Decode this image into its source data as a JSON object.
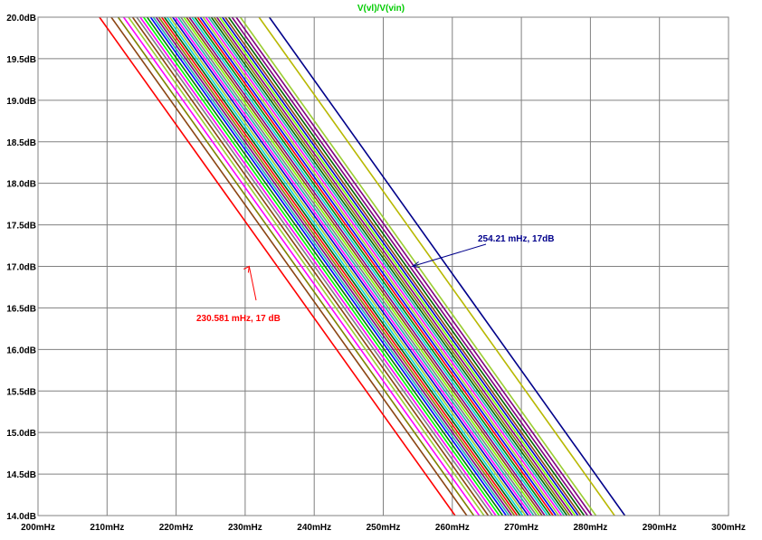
{
  "chart_data": {
    "type": "line",
    "title": "V(vl)/V(vin)",
    "title_color": "#00cc00",
    "xlim": [
      0.2,
      0.3
    ],
    "ylim": [
      14.0,
      20.0
    ],
    "x_ticks": [
      {
        "value": 0.2,
        "label": "200mHz"
      },
      {
        "value": 0.21,
        "label": "210mHz"
      },
      {
        "value": 0.22,
        "label": "220mHz"
      },
      {
        "value": 0.23,
        "label": "230mHz"
      },
      {
        "value": 0.24,
        "label": "240mHz"
      },
      {
        "value": 0.25,
        "label": "250mHz"
      },
      {
        "value": 0.26,
        "label": "260mHz"
      },
      {
        "value": 0.27,
        "label": "270mHz"
      },
      {
        "value": 0.28,
        "label": "280mHz"
      },
      {
        "value": 0.29,
        "label": "290mHz"
      },
      {
        "value": 0.3,
        "label": "300mHz"
      }
    ],
    "y_ticks": [
      {
        "value": 20.0,
        "label": "20.0dB"
      },
      {
        "value": 19.5,
        "label": "19.5dB"
      },
      {
        "value": 19.0,
        "label": "19.0dB"
      },
      {
        "value": 18.5,
        "label": "18.5dB"
      },
      {
        "value": 18.0,
        "label": "18.0dB"
      },
      {
        "value": 17.5,
        "label": "17.5dB"
      },
      {
        "value": 17.0,
        "label": "17.0dB"
      },
      {
        "value": 16.5,
        "label": "16.5dB"
      },
      {
        "value": 16.0,
        "label": "16.0dB"
      },
      {
        "value": 15.5,
        "label": "15.5dB"
      },
      {
        "value": 15.0,
        "label": "15.0dB"
      },
      {
        "value": 14.5,
        "label": "14.5dB"
      },
      {
        "value": 14.0,
        "label": "14.0dB"
      }
    ],
    "grid": true,
    "series": [
      {
        "color": "#ff0000",
        "x": [
          0.2089,
          0.2604
        ],
        "y": [
          20.0,
          14.0
        ]
      },
      {
        "color": "#8b4513",
        "x": [
          0.2106,
          0.2621
        ],
        "y": [
          20.0,
          14.0
        ]
      },
      {
        "color": "#808000",
        "x": [
          0.2116,
          0.2631
        ],
        "y": [
          20.0,
          14.0
        ]
      },
      {
        "color": "#ff00ff",
        "x": [
          0.2124,
          0.2639
        ],
        "y": [
          20.0,
          14.0
        ]
      },
      {
        "color": "#9acd32",
        "x": [
          0.2131,
          0.2646
        ],
        "y": [
          20.0,
          14.0
        ]
      },
      {
        "color": "#8b4513",
        "x": [
          0.2137,
          0.2652
        ],
        "y": [
          20.0,
          14.0
        ]
      },
      {
        "color": "#808080",
        "x": [
          0.2143,
          0.2658
        ],
        "y": [
          20.0,
          14.0
        ]
      },
      {
        "color": "#ff00ff",
        "x": [
          0.2148,
          0.2663
        ],
        "y": [
          20.0,
          14.0
        ]
      },
      {
        "color": "#00ff00",
        "x": [
          0.2153,
          0.2668
        ],
        "y": [
          20.0,
          14.0
        ]
      },
      {
        "color": "#008000",
        "x": [
          0.2158,
          0.2673
        ],
        "y": [
          20.0,
          14.0
        ]
      },
      {
        "color": "#0000ff",
        "x": [
          0.2163,
          0.2678
        ],
        "y": [
          20.0,
          14.0
        ]
      },
      {
        "color": "#20b2aa",
        "x": [
          0.2167,
          0.2682
        ],
        "y": [
          20.0,
          14.0
        ]
      },
      {
        "color": "#800080",
        "x": [
          0.2171,
          0.2686
        ],
        "y": [
          20.0,
          14.0
        ]
      },
      {
        "color": "#808000",
        "x": [
          0.2175,
          0.269
        ],
        "y": [
          20.0,
          14.0
        ]
      },
      {
        "color": "#ff0000",
        "x": [
          0.2179,
          0.2694
        ],
        "y": [
          20.0,
          14.0
        ]
      },
      {
        "color": "#006400",
        "x": [
          0.2183,
          0.2698
        ],
        "y": [
          20.0,
          14.0
        ]
      },
      {
        "color": "#00ced1",
        "x": [
          0.2187,
          0.2702
        ],
        "y": [
          20.0,
          14.0
        ]
      },
      {
        "color": "#9acd32",
        "x": [
          0.2191,
          0.2706
        ],
        "y": [
          20.0,
          14.0
        ]
      },
      {
        "color": "#0000cd",
        "x": [
          0.2195,
          0.271
        ],
        "y": [
          20.0,
          14.0
        ]
      },
      {
        "color": "#ff00ff",
        "x": [
          0.2199,
          0.2714
        ],
        "y": [
          20.0,
          14.0
        ]
      },
      {
        "color": "#20b2aa",
        "x": [
          0.2203,
          0.2718
        ],
        "y": [
          20.0,
          14.0
        ]
      },
      {
        "color": "#808080",
        "x": [
          0.2207,
          0.2722
        ],
        "y": [
          20.0,
          14.0
        ]
      },
      {
        "color": "#7cfc00",
        "x": [
          0.2211,
          0.2726
        ],
        "y": [
          20.0,
          14.0
        ]
      },
      {
        "color": "#8b4513",
        "x": [
          0.2215,
          0.273
        ],
        "y": [
          20.0,
          14.0
        ]
      },
      {
        "color": "#800080",
        "x": [
          0.2219,
          0.2734
        ],
        "y": [
          20.0,
          14.0
        ]
      },
      {
        "color": "#00ced1",
        "x": [
          0.2223,
          0.2738
        ],
        "y": [
          20.0,
          14.0
        ]
      },
      {
        "color": "#008000",
        "x": [
          0.2227,
          0.2742
        ],
        "y": [
          20.0,
          14.0
        ]
      },
      {
        "color": "#ff0000",
        "x": [
          0.2231,
          0.2746
        ],
        "y": [
          20.0,
          14.0
        ]
      },
      {
        "color": "#0000ff",
        "x": [
          0.2235,
          0.275
        ],
        "y": [
          20.0,
          14.0
        ]
      },
      {
        "color": "#9acd32",
        "x": [
          0.2239,
          0.2754
        ],
        "y": [
          20.0,
          14.0
        ]
      },
      {
        "color": "#ff00ff",
        "x": [
          0.2243,
          0.2758
        ],
        "y": [
          20.0,
          14.0
        ]
      },
      {
        "color": "#20b2aa",
        "x": [
          0.2247,
          0.2762
        ],
        "y": [
          20.0,
          14.0
        ]
      },
      {
        "color": "#006400",
        "x": [
          0.2251,
          0.2766
        ],
        "y": [
          20.0,
          14.0
        ]
      },
      {
        "color": "#808000",
        "x": [
          0.2255,
          0.277
        ],
        "y": [
          20.0,
          14.0
        ]
      },
      {
        "color": "#800080",
        "x": [
          0.2259,
          0.2774
        ],
        "y": [
          20.0,
          14.0
        ]
      },
      {
        "color": "#7cfc00",
        "x": [
          0.2263,
          0.2778
        ],
        "y": [
          20.0,
          14.0
        ]
      },
      {
        "color": "#0000cd",
        "x": [
          0.2267,
          0.2782
        ],
        "y": [
          20.0,
          14.0
        ]
      },
      {
        "color": "#8b4513",
        "x": [
          0.2271,
          0.2786
        ],
        "y": [
          20.0,
          14.0
        ]
      },
      {
        "color": "#006400",
        "x": [
          0.2276,
          0.2791
        ],
        "y": [
          20.0,
          14.0
        ]
      },
      {
        "color": "#800080",
        "x": [
          0.2281,
          0.2796
        ],
        "y": [
          20.0,
          14.0
        ]
      },
      {
        "color": "#800080",
        "x": [
          0.2287,
          0.2802
        ],
        "y": [
          20.0,
          14.0
        ]
      },
      {
        "color": "#9acd32",
        "x": [
          0.2293,
          0.2808
        ],
        "y": [
          20.0,
          14.0
        ]
      },
      {
        "color": "#b8b800",
        "x": [
          0.232,
          0.2835
        ],
        "y": [
          20.0,
          14.0
        ]
      },
      {
        "color": "#00008b",
        "x": [
          0.2335,
          0.285
        ],
        "y": [
          20.0,
          14.0
        ]
      }
    ],
    "annotations": [
      {
        "text": "230.581 mHz, 17 dB",
        "color": "#ff0000",
        "x": 0.230581,
        "y": 17.0
      },
      {
        "text": "254.21 mHz, 17dB",
        "color": "#00008b",
        "x": 0.25421,
        "y": 17.0
      }
    ]
  }
}
